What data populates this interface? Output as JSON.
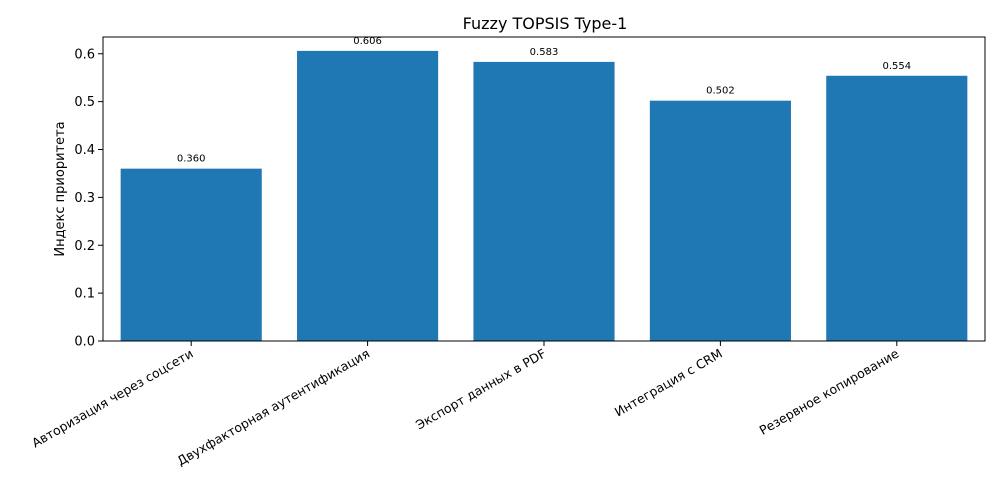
{
  "chart_data": {
    "type": "bar",
    "title": "Fuzzy TOPSIS Type-1",
    "xlabel": "",
    "ylabel": "Индекс приоритета",
    "ylim": [
      0,
      0.635
    ],
    "yticks": [
      0.0,
      0.1,
      0.2,
      0.3,
      0.4,
      0.5,
      0.6
    ],
    "ytick_labels": [
      "0.0",
      "0.1",
      "0.2",
      "0.3",
      "0.4",
      "0.5",
      "0.6"
    ],
    "categories": [
      "Авторизация через соцсети",
      "Двухфакторная аутентификация",
      "Экспорт данных в PDF",
      "Интеграция с CRM",
      "Резервное копирование"
    ],
    "values": [
      0.36,
      0.606,
      0.583,
      0.502,
      0.554
    ],
    "value_labels": [
      "0.360",
      "0.606",
      "0.583",
      "0.502",
      "0.554"
    ],
    "bar_color": "#1f77b4",
    "grid": false,
    "legend": "none"
  }
}
